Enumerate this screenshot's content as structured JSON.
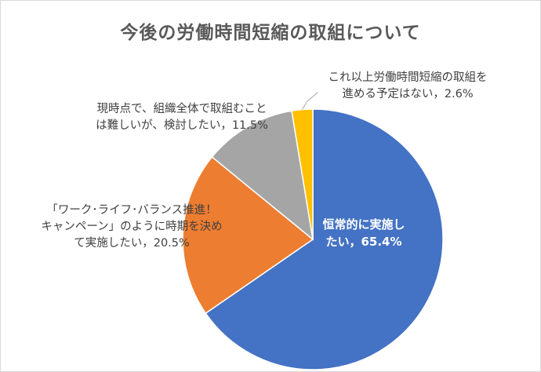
{
  "chart_data": {
    "type": "pie",
    "title": "今後の労働時間短縮の取組について",
    "slices": [
      {
        "label_lines": [
          "恒常的に実施し",
          "たい，65.4%"
        ],
        "value": 65.4,
        "color": "#4472c4"
      },
      {
        "label_lines": [
          "「ワーク･ライフ･バランス推進！",
          "キャンペーン」のように時期を決め",
          "て実施したい，20.5%"
        ],
        "value": 20.5,
        "color": "#ed7d31"
      },
      {
        "label_lines": [
          "現時点で、組織全体で取組むこと",
          "は難しいが、検討したい，11.5%"
        ],
        "value": 11.5,
        "color": "#a5a5a5"
      },
      {
        "label_lines": [
          "これ以上労働時間短縮の取組を",
          "進める予定はない，2.6%"
        ],
        "value": 2.6,
        "color": "#ffc000"
      }
    ],
    "legend": "none"
  }
}
